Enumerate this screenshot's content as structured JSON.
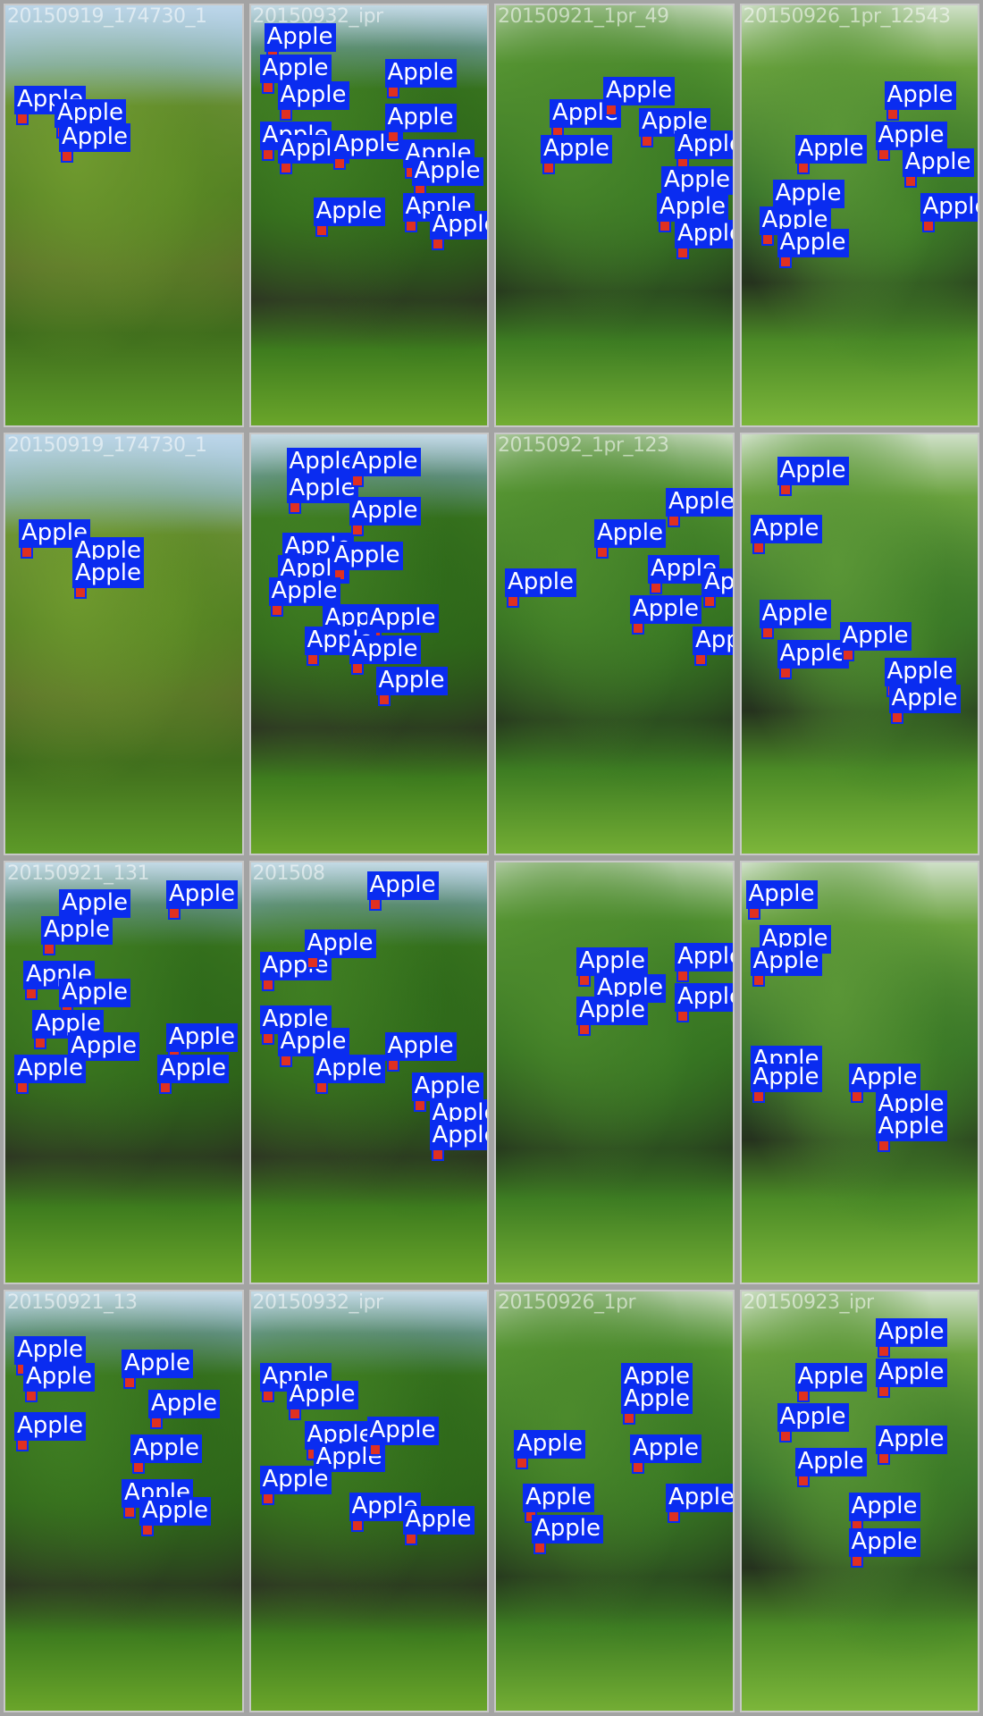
{
  "detection_label": "Apple",
  "colors": {
    "box": "#0a2cf0",
    "box_text": "#ffffff",
    "separator": "#a3a3a3"
  },
  "tiles": [
    {
      "filename": "20150919_174730_1",
      "scene": "a"
    },
    {
      "filename": "20150932_ipr",
      "scene": "b"
    },
    {
      "filename": "20150921_1pr_49",
      "scene": "c"
    },
    {
      "filename": "20150926_1pr_12543",
      "scene": "d"
    },
    {
      "filename": "20150919_174730_1",
      "scene": "a"
    },
    {
      "filename": "",
      "scene": "b"
    },
    {
      "filename": "2015092_1pr_123",
      "scene": "c"
    },
    {
      "filename": "",
      "scene": "d"
    },
    {
      "filename": "20150921_131",
      "scene": "b"
    },
    {
      "filename": "201508",
      "scene": "b"
    },
    {
      "filename": "",
      "scene": "c"
    },
    {
      "filename": "",
      "scene": "d"
    },
    {
      "filename": "20150921_13",
      "scene": "b"
    },
    {
      "filename": "20150932_ipr",
      "scene": "b"
    },
    {
      "filename": "20150926_1pr",
      "scene": "c"
    },
    {
      "filename": "20150923_ipr",
      "scene": "d"
    }
  ]
}
